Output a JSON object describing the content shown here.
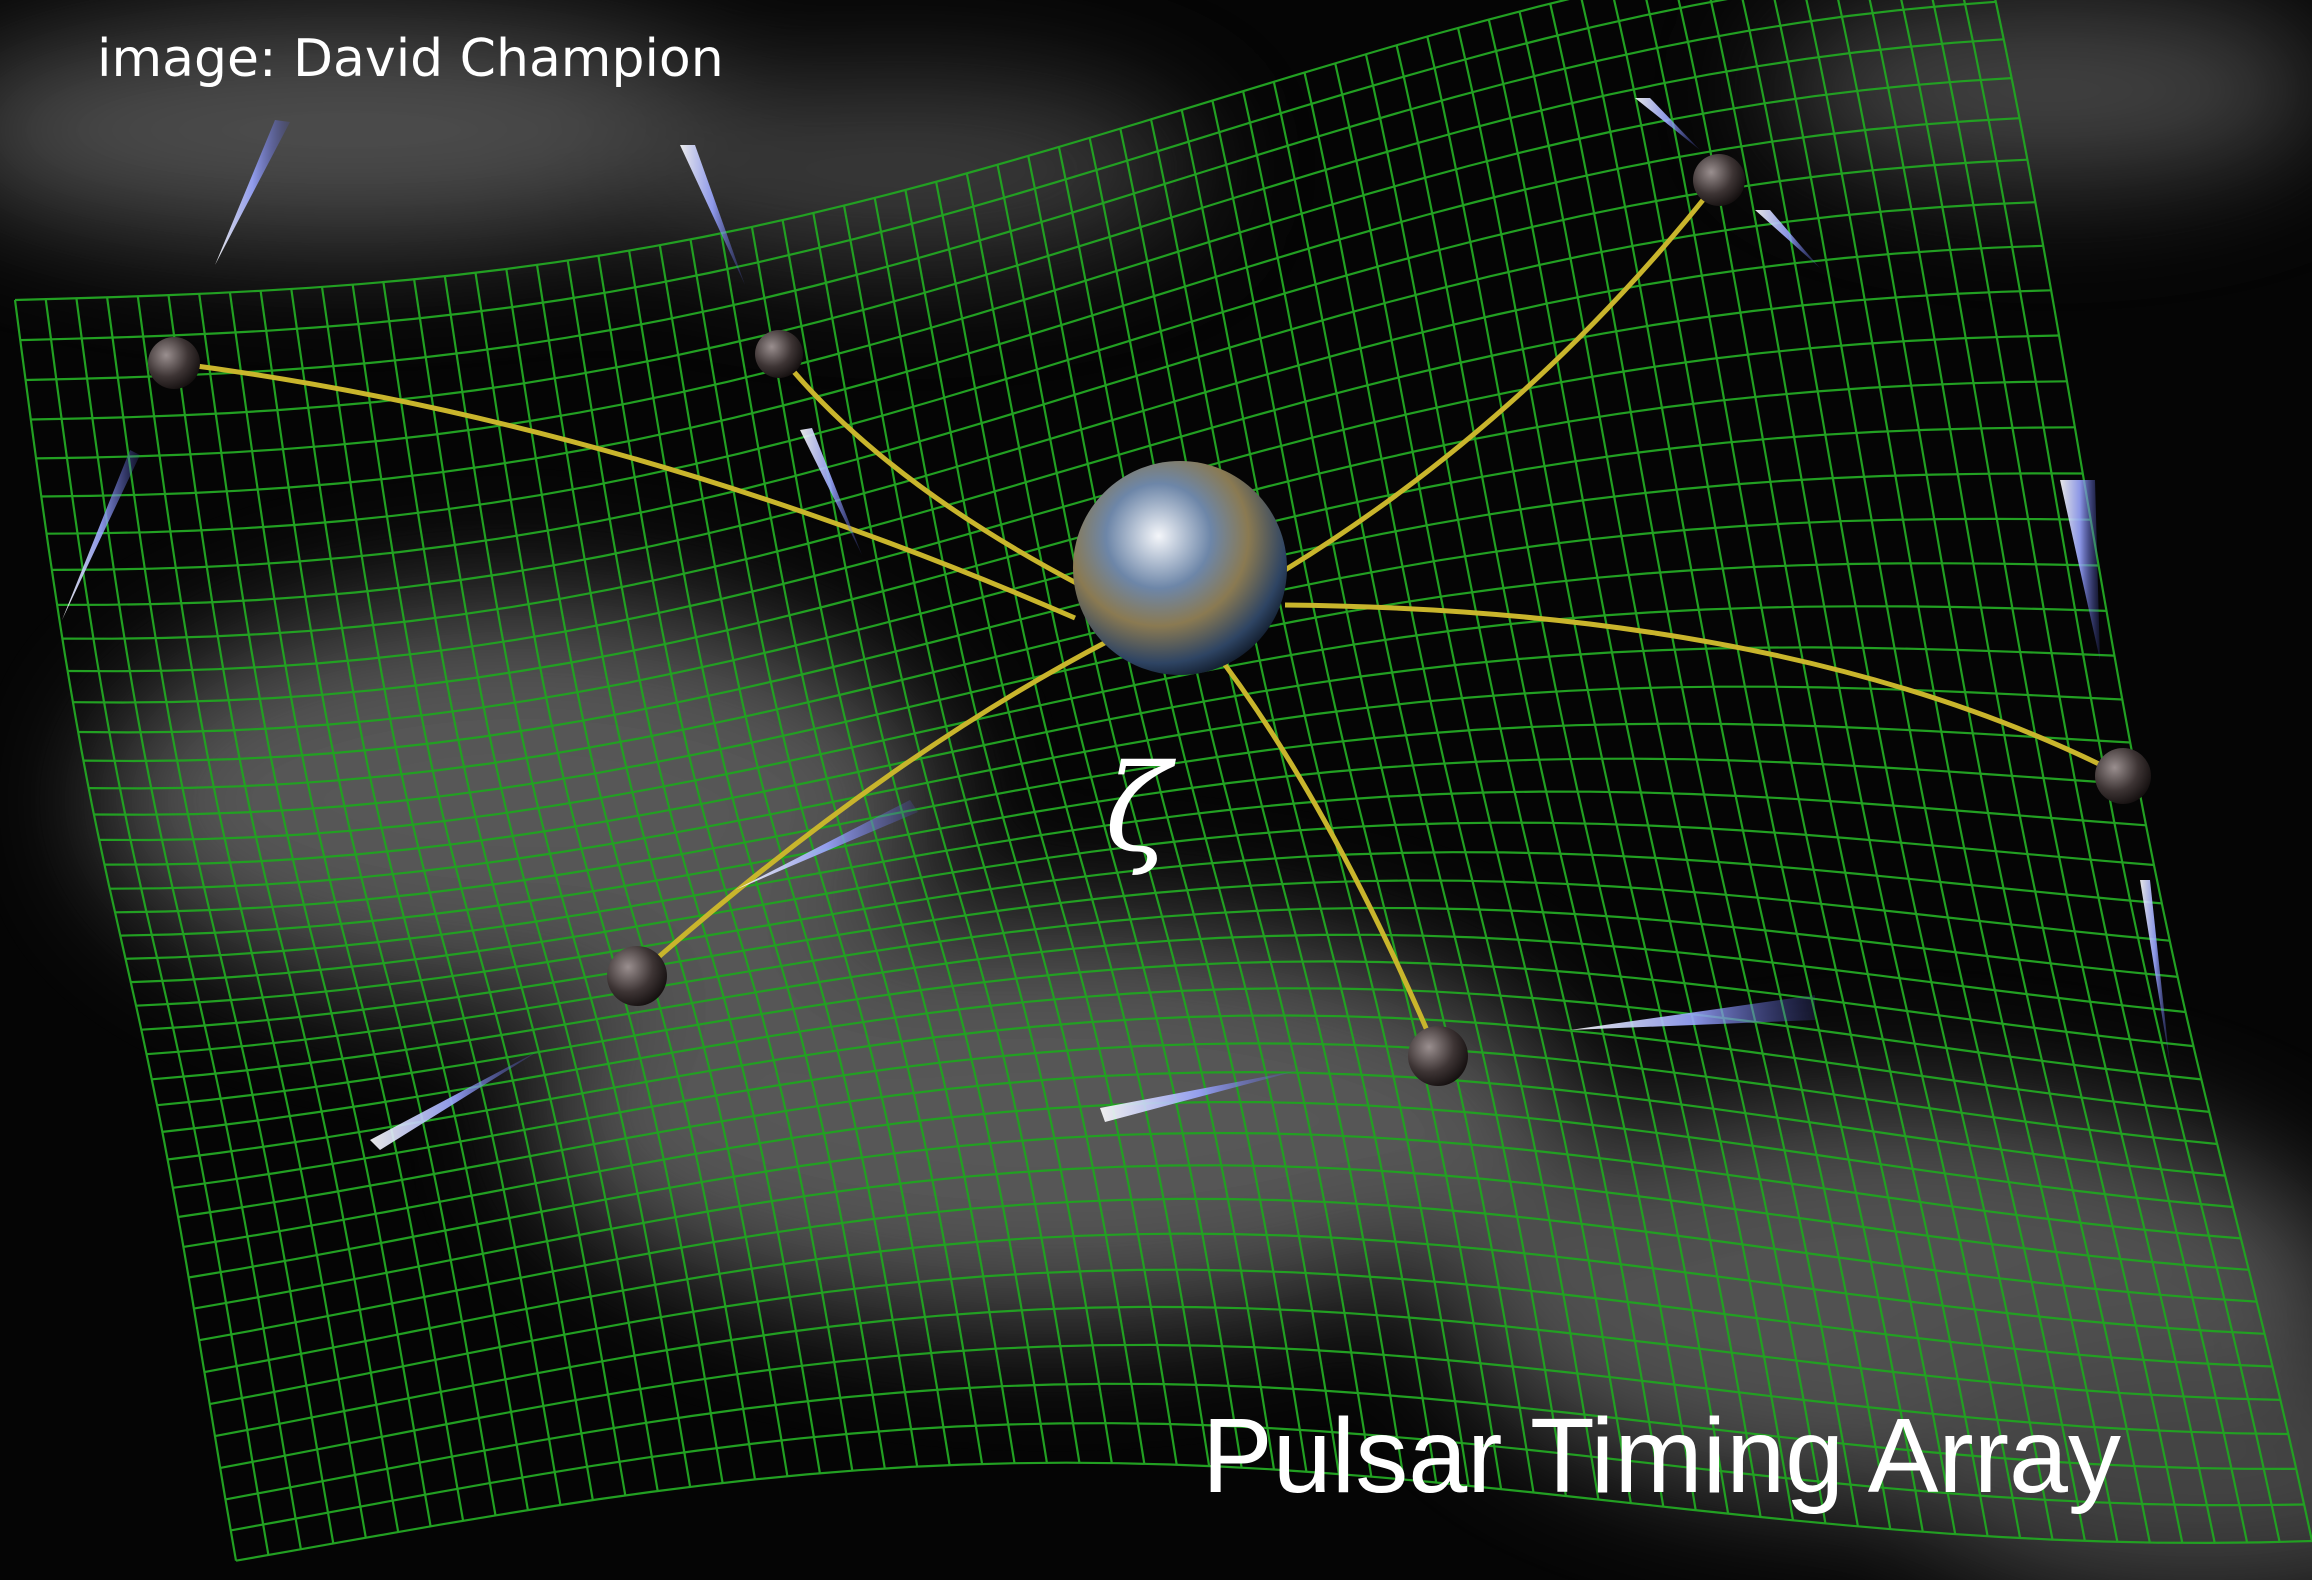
{
  "credit": "image: David Champion",
  "symbol": "ζ",
  "title": "Pulsar Timing Array"
}
